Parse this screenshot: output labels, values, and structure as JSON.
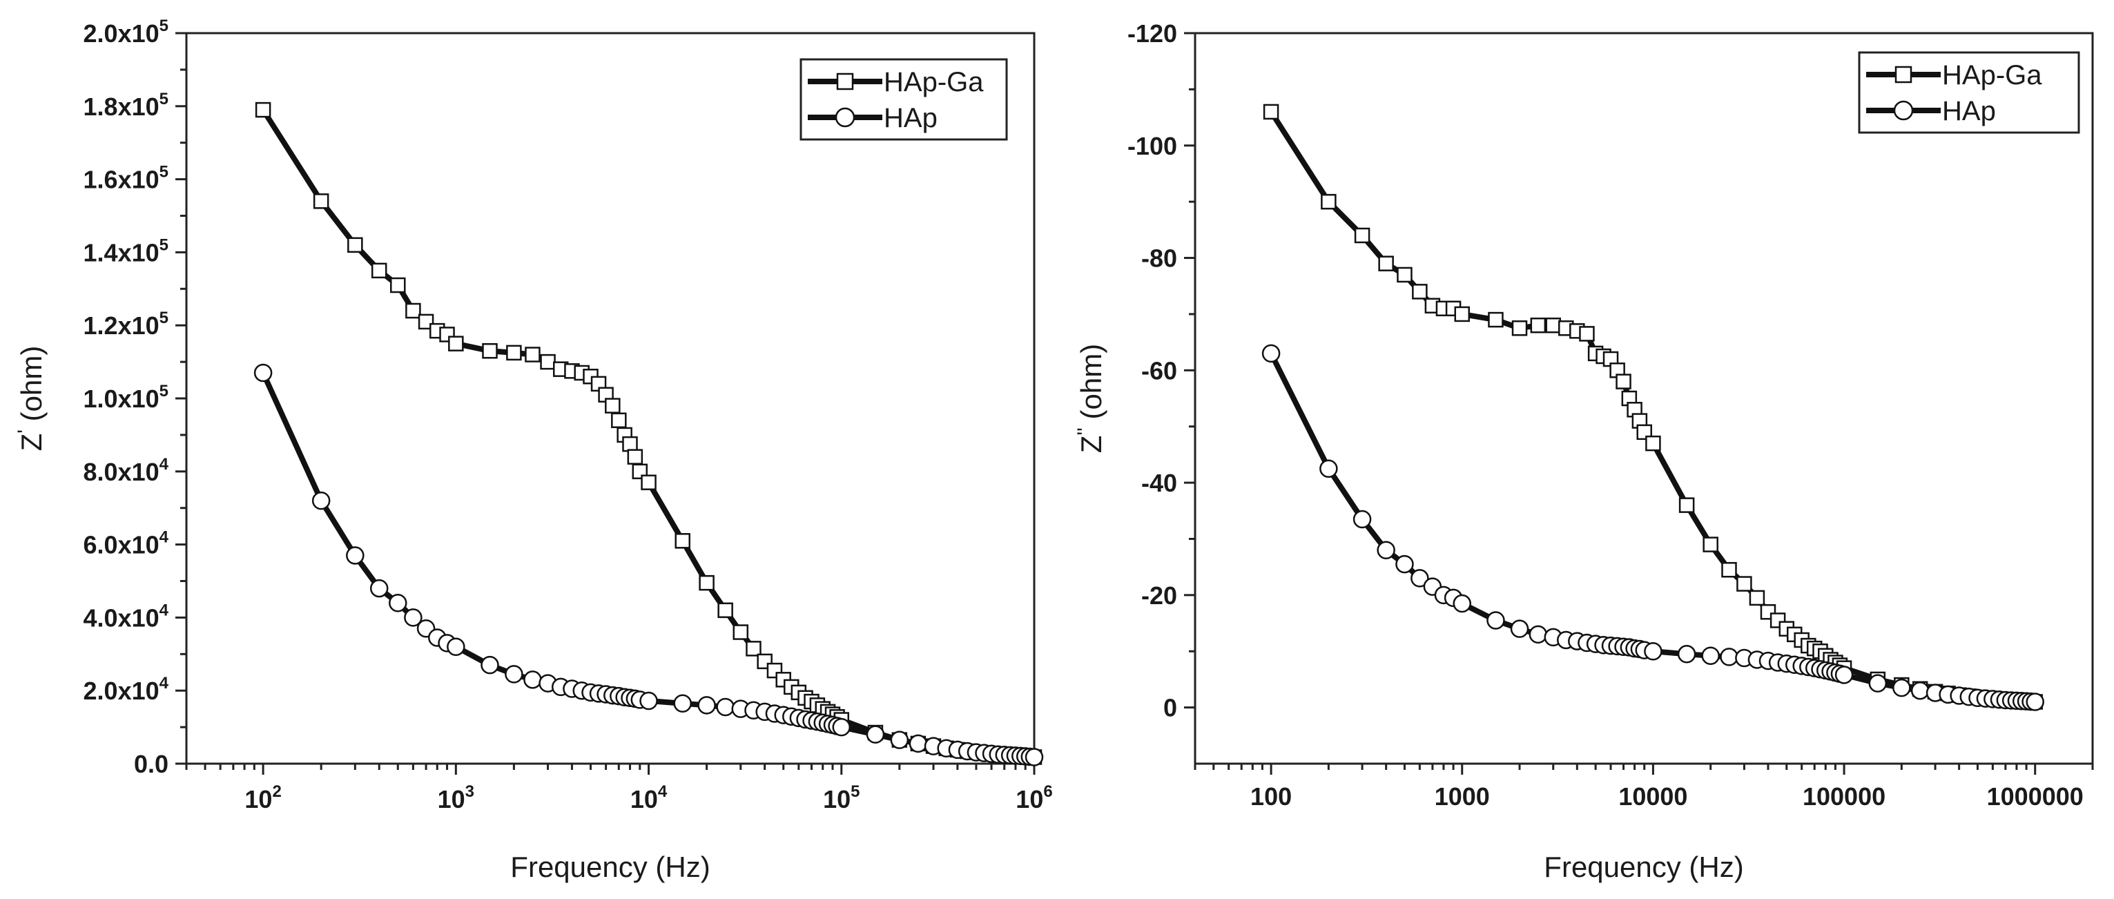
{
  "chart_data": [
    {
      "type": "line",
      "id": "left",
      "xscale": "log",
      "xlim": [
        40,
        1000000
      ],
      "ylim": [
        0,
        200000
      ],
      "xlabel": "Frequency (Hz)",
      "ylabel": "Z' (ohm)",
      "ylabel_main": "Z",
      "ylabel_prime": "'",
      "ylabel_rest": " (ohm)",
      "x_ticks": [
        {
          "value": 100,
          "base": "10",
          "exp": "2"
        },
        {
          "value": 1000,
          "base": "10",
          "exp": "3"
        },
        {
          "value": 10000,
          "base": "10",
          "exp": "4"
        },
        {
          "value": 100000,
          "base": "10",
          "exp": "5"
        },
        {
          "value": 1000000,
          "base": "10",
          "exp": "6"
        }
      ],
      "y_ticks": [
        {
          "value": 0,
          "mantissa": "0.0",
          "exp": ""
        },
        {
          "value": 20000,
          "mantissa": "2.0x10",
          "exp": "4"
        },
        {
          "value": 40000,
          "mantissa": "4.0x10",
          "exp": "4"
        },
        {
          "value": 60000,
          "mantissa": "6.0x10",
          "exp": "4"
        },
        {
          "value": 80000,
          "mantissa": "8.0x10",
          "exp": "4"
        },
        {
          "value": 100000,
          "mantissa": "1.0x10",
          "exp": "5"
        },
        {
          "value": 120000,
          "mantissa": "1.2x10",
          "exp": "5"
        },
        {
          "value": 140000,
          "mantissa": "1.4x10",
          "exp": "5"
        },
        {
          "value": 160000,
          "mantissa": "1.6x10",
          "exp": "5"
        },
        {
          "value": 180000,
          "mantissa": "1.8x10",
          "exp": "5"
        },
        {
          "value": 200000,
          "mantissa": "2.0x10",
          "exp": "5"
        }
      ],
      "legend": {
        "position": "top-right"
      },
      "series": [
        {
          "name": "HAp-Ga",
          "marker": "square",
          "x": [
            100,
            200,
            300,
            400,
            500,
            600,
            700,
            800,
            900,
            1000,
            1500,
            2000,
            2500,
            3000,
            3500,
            4000,
            4500,
            5000,
            5500,
            6000,
            6500,
            7000,
            7500,
            8000,
            8500,
            9000,
            10000,
            15000,
            20000,
            25000,
            30000,
            35000,
            40000,
            45000,
            50000,
            55000,
            60000,
            65000,
            70000,
            75000,
            80000,
            85000,
            90000,
            95000,
            100000,
            150000,
            200000,
            250000,
            300000,
            350000,
            400000,
            450000,
            500000,
            550000,
            600000,
            650000,
            700000,
            750000,
            800000,
            850000,
            900000,
            950000,
            1000000
          ],
          "y": [
            179000,
            154000,
            142000,
            135000,
            131000,
            124000,
            121000,
            118500,
            117500,
            115000,
            113000,
            112500,
            112000,
            110000,
            108000,
            107500,
            107000,
            106000,
            104000,
            101000,
            98000,
            94000,
            90000,
            87500,
            84000,
            80000,
            77000,
            61000,
            49500,
            42000,
            36000,
            31500,
            28000,
            25500,
            23000,
            21000,
            19500,
            18000,
            17000,
            16000,
            15000,
            14200,
            13500,
            12800,
            12000,
            8500,
            6500,
            5500,
            4800,
            4200,
            3800,
            3400,
            3100,
            2900,
            2700,
            2500,
            2400,
            2300,
            2200,
            2100,
            2000,
            1900,
            1800
          ]
        },
        {
          "name": "HAp",
          "marker": "circle",
          "x": [
            100,
            200,
            300,
            400,
            500,
            600,
            700,
            800,
            900,
            1000,
            1500,
            2000,
            2500,
            3000,
            3500,
            4000,
            4500,
            5000,
            5500,
            6000,
            6500,
            7000,
            7500,
            8000,
            8500,
            9000,
            10000,
            15000,
            20000,
            25000,
            30000,
            35000,
            40000,
            45000,
            50000,
            55000,
            60000,
            65000,
            70000,
            75000,
            80000,
            85000,
            90000,
            95000,
            100000,
            150000,
            200000,
            250000,
            300000,
            350000,
            400000,
            450000,
            500000,
            550000,
            600000,
            650000,
            700000,
            750000,
            800000,
            850000,
            900000,
            950000,
            1000000
          ],
          "y": [
            107000,
            72000,
            57000,
            48000,
            44000,
            40000,
            37000,
            34500,
            33000,
            32000,
            27000,
            24500,
            23000,
            22000,
            21000,
            20500,
            20000,
            19500,
            19200,
            19000,
            18700,
            18500,
            18200,
            18000,
            17800,
            17500,
            17200,
            16500,
            16000,
            15500,
            15000,
            14600,
            14200,
            13700,
            13300,
            12900,
            12500,
            12100,
            11800,
            11500,
            11200,
            10900,
            10600,
            10300,
            10000,
            8000,
            6500,
            5500,
            4800,
            4200,
            3800,
            3400,
            3100,
            2900,
            2700,
            2500,
            2400,
            2300,
            2200,
            2100,
            2000,
            1900,
            1800
          ]
        }
      ]
    },
    {
      "type": "line",
      "id": "right",
      "xscale": "log",
      "xlim": [
        40,
        2000000
      ],
      "ylim": [
        10,
        -120
      ],
      "xlabel": "Frequency (Hz)",
      "ylabel": "Z'' (ohm)",
      "ylabel_main": "Z",
      "ylabel_prime": "''",
      "ylabel_rest": " (ohm)",
      "x_ticks": [
        {
          "value": 100,
          "label": "100"
        },
        {
          "value": 1000,
          "label": "1000"
        },
        {
          "value": 10000,
          "label": "10000"
        },
        {
          "value": 100000,
          "label": "100000"
        },
        {
          "value": 1000000,
          "label": "1000000"
        }
      ],
      "y_ticks": [
        {
          "value": 0,
          "label": "0"
        },
        {
          "value": -20,
          "label": "-20"
        },
        {
          "value": -40,
          "label": "-40"
        },
        {
          "value": -60,
          "label": "-60"
        },
        {
          "value": -80,
          "label": "-80"
        },
        {
          "value": -100,
          "label": "-100"
        },
        {
          "value": -120,
          "label": "-120"
        }
      ],
      "legend": {
        "position": "top-right"
      },
      "series": [
        {
          "name": "HAp-Ga",
          "marker": "square",
          "x": [
            100,
            200,
            300,
            400,
            500,
            600,
            700,
            800,
            900,
            1000,
            1500,
            2000,
            2500,
            3000,
            3500,
            4000,
            4500,
            5000,
            5500,
            6000,
            6500,
            7000,
            7500,
            8000,
            8500,
            9000,
            10000,
            15000,
            20000,
            25000,
            30000,
            35000,
            40000,
            45000,
            50000,
            55000,
            60000,
            65000,
            70000,
            75000,
            80000,
            85000,
            90000,
            95000,
            100000,
            150000,
            200000,
            250000,
            300000,
            350000,
            400000,
            450000,
            500000,
            550000,
            600000,
            650000,
            700000,
            750000,
            800000,
            850000,
            900000,
            950000,
            1000000
          ],
          "y": [
            -106,
            -90,
            -84,
            -79,
            -77,
            -74,
            -71.5,
            -71,
            -71,
            -70,
            -69,
            -67.5,
            -68,
            -68,
            -67.5,
            -67,
            -66.5,
            -63,
            -62.5,
            -62,
            -60,
            -58,
            -55,
            -53,
            -51,
            -49,
            -47,
            -36,
            -29,
            -24.5,
            -22,
            -19.5,
            -17,
            -15.5,
            -14,
            -13,
            -12,
            -11,
            -10.5,
            -10,
            -9.2,
            -8.5,
            -8,
            -7.5,
            -7,
            -5,
            -4,
            -3.3,
            -2.8,
            -2.5,
            -2.2,
            -2,
            -1.8,
            -1.7,
            -1.6,
            -1.5,
            -1.4,
            -1.3,
            -1.25,
            -1.2,
            -1.15,
            -1.1,
            -1
          ]
        },
        {
          "name": "HAp",
          "marker": "circle",
          "x": [
            100,
            200,
            300,
            400,
            500,
            600,
            700,
            800,
            900,
            1000,
            1500,
            2000,
            2500,
            3000,
            3500,
            4000,
            4500,
            5000,
            5500,
            6000,
            6500,
            7000,
            7500,
            8000,
            8500,
            9000,
            10000,
            15000,
            20000,
            25000,
            30000,
            35000,
            40000,
            45000,
            50000,
            55000,
            60000,
            65000,
            70000,
            75000,
            80000,
            85000,
            90000,
            95000,
            100000,
            150000,
            200000,
            250000,
            300000,
            350000,
            400000,
            450000,
            500000,
            550000,
            600000,
            650000,
            700000,
            750000,
            800000,
            850000,
            900000,
            950000,
            1000000
          ],
          "y": [
            -63,
            -42.5,
            -33.5,
            -28,
            -25.5,
            -23,
            -21.5,
            -20,
            -19.5,
            -18.5,
            -15.5,
            -14,
            -13,
            -12.5,
            -12,
            -11.8,
            -11.5,
            -11.3,
            -11.1,
            -11,
            -10.9,
            -10.8,
            -10.7,
            -10.5,
            -10.4,
            -10.2,
            -10,
            -9.5,
            -9.2,
            -9,
            -8.8,
            -8.5,
            -8.3,
            -8,
            -7.8,
            -7.6,
            -7.4,
            -7.2,
            -7,
            -6.8,
            -6.6,
            -6.4,
            -6.2,
            -6,
            -5.8,
            -4.3,
            -3.5,
            -3,
            -2.6,
            -2.3,
            -2.1,
            -1.9,
            -1.7,
            -1.6,
            -1.5,
            -1.4,
            -1.3,
            -1.25,
            -1.2,
            -1.15,
            -1.1,
            -1.05,
            -1
          ]
        }
      ]
    }
  ]
}
